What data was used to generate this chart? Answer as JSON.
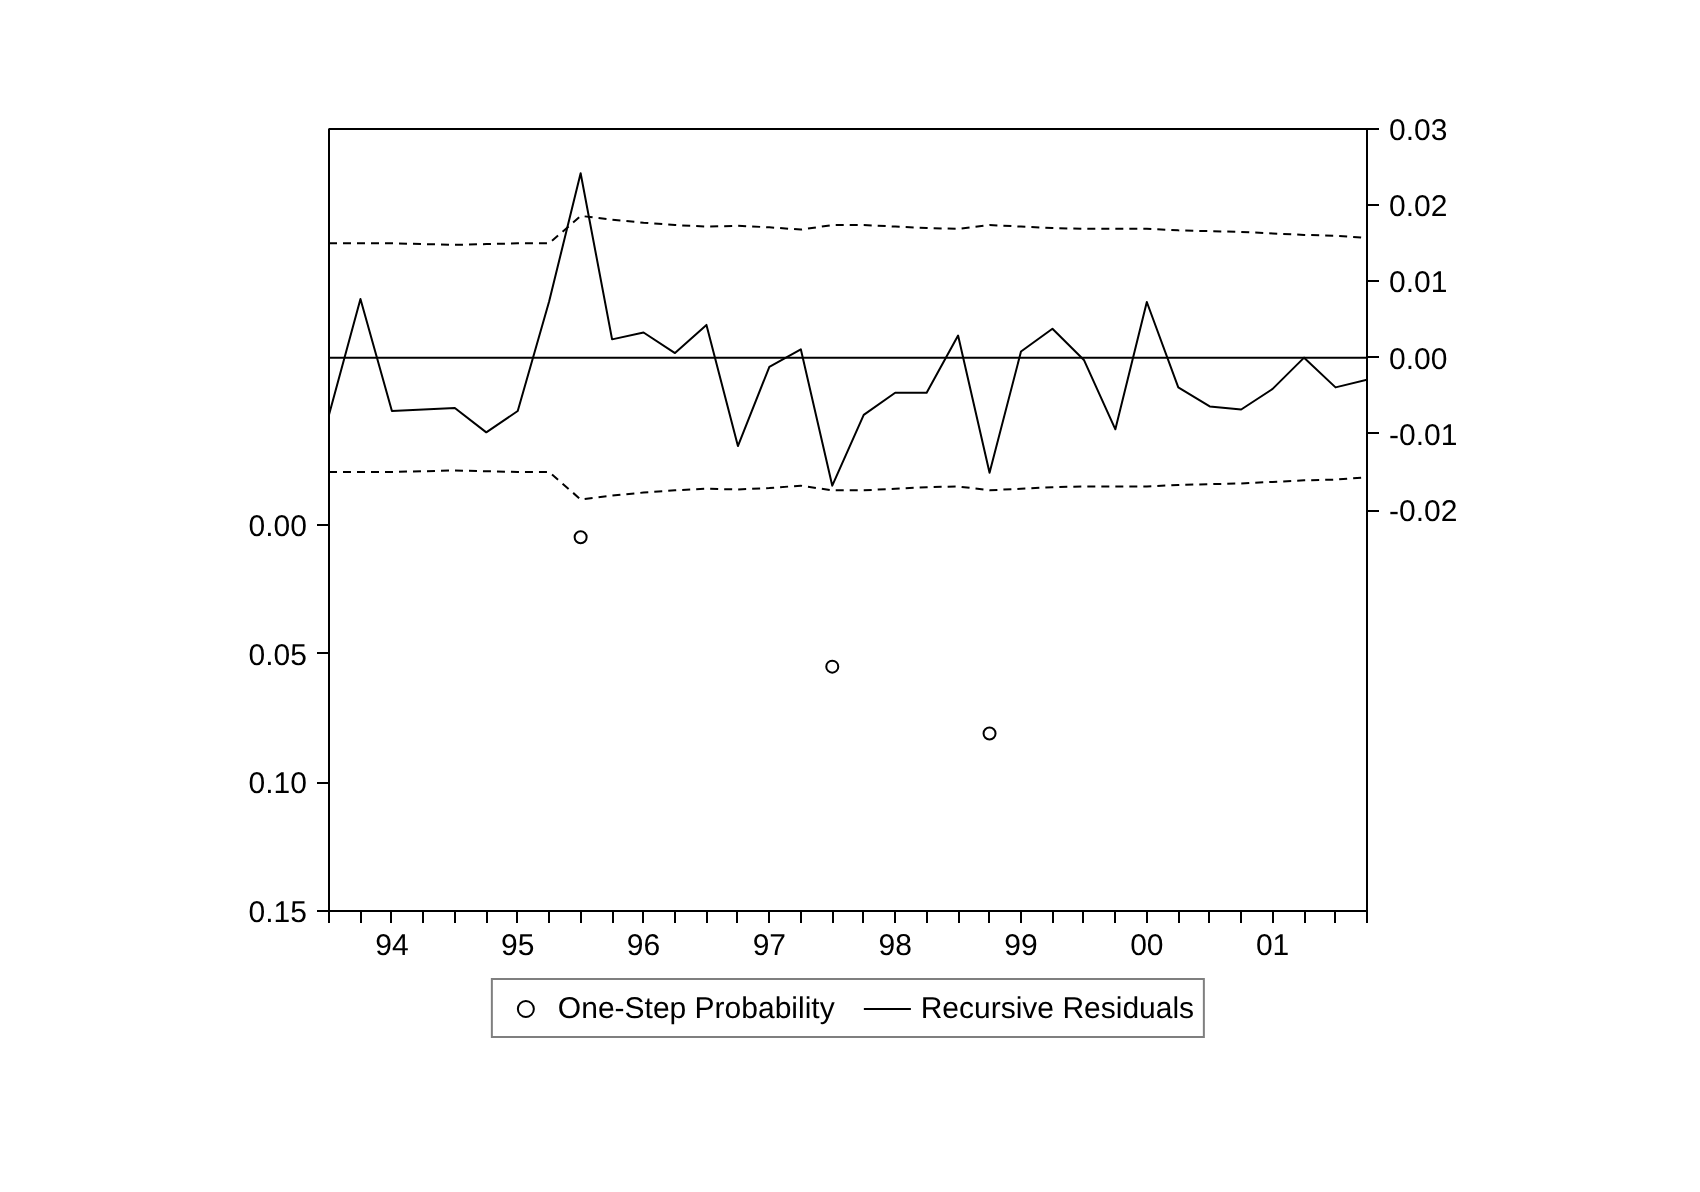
{
  "chart_data": {
    "type": "line",
    "x": [
      1993.5,
      1993.75,
      1994,
      1994.25,
      1994.5,
      1994.75,
      1995,
      1995.25,
      1995.5,
      1995.75,
      1996,
      1996.25,
      1996.5,
      1996.75,
      1997,
      1997.25,
      1997.5,
      1997.75,
      1998,
      1998.25,
      1998.5,
      1998.75,
      1999,
      1999.25,
      1999.5,
      1999.75,
      2000,
      2000.25,
      2000.5,
      2000.75,
      2001,
      2001.25,
      2001.5,
      2001.75
    ],
    "xlim": [
      1993.5,
      2001.75
    ],
    "xticks": [
      {
        "value": 1993.5,
        "label": null
      },
      {
        "value": 1993.75,
        "label": null
      },
      {
        "value": 1994,
        "label": "94"
      },
      {
        "value": 1994.25,
        "label": null
      },
      {
        "value": 1994.5,
        "label": null
      },
      {
        "value": 1994.75,
        "label": null
      },
      {
        "value": 1995,
        "label": "95"
      },
      {
        "value": 1995.25,
        "label": null
      },
      {
        "value": 1995.5,
        "label": null
      },
      {
        "value": 1995.75,
        "label": null
      },
      {
        "value": 1996,
        "label": "96"
      },
      {
        "value": 1996.25,
        "label": null
      },
      {
        "value": 1996.5,
        "label": null
      },
      {
        "value": 1996.75,
        "label": null
      },
      {
        "value": 1997,
        "label": "97"
      },
      {
        "value": 1997.25,
        "label": null
      },
      {
        "value": 1997.5,
        "label": null
      },
      {
        "value": 1997.75,
        "label": null
      },
      {
        "value": 1998,
        "label": "98"
      },
      {
        "value": 1998.25,
        "label": null
      },
      {
        "value": 1998.5,
        "label": null
      },
      {
        "value": 1998.75,
        "label": null
      },
      {
        "value": 1999,
        "label": "99"
      },
      {
        "value": 1999.25,
        "label": null
      },
      {
        "value": 1999.5,
        "label": null
      },
      {
        "value": 1999.75,
        "label": null
      },
      {
        "value": 2000,
        "label": "00"
      },
      {
        "value": 2000.25,
        "label": null
      },
      {
        "value": 2000.5,
        "label": null
      },
      {
        "value": 2000.75,
        "label": null
      },
      {
        "value": 2001,
        "label": "01"
      },
      {
        "value": 2001.25,
        "label": null
      },
      {
        "value": 2001.5,
        "label": null
      },
      {
        "value": 2001.75,
        "label": null
      }
    ],
    "ylim": [
      0.15,
      -0.154
    ],
    "yticks": [
      {
        "value": 0,
        "label": "0.00"
      },
      {
        "value": 0.05,
        "label": "0.05"
      },
      {
        "value": 0.1,
        "label": "0.10"
      },
      {
        "value": 0.15,
        "label": "0.15"
      }
    ],
    "y2lim": [
      -0.0726,
      0.03
    ],
    "y2ticks": [
      {
        "value": -0.02,
        "label": "-0.02"
      },
      {
        "value": -0.01,
        "label": "-0.01"
      },
      {
        "value": 0,
        "label": "0.00"
      },
      {
        "value": 0.01,
        "label": "0.01"
      },
      {
        "value": 0.02,
        "label": "0.02"
      },
      {
        "value": 0.03,
        "label": "0.03"
      }
    ],
    "grid": false,
    "legend": "bottom",
    "ref_lines": [
      {
        "axis": "y2",
        "value": 0,
        "color": "#000000",
        "line_style": "solid"
      }
    ],
    "series": [
      {
        "name": "One-Step Probability",
        "type": "scatter",
        "marker": "circle",
        "color": "#000000",
        "x": [
          1995.5,
          1997.5,
          1998.75
        ],
        "values": [
          0.0047,
          0.055,
          0.081
        ]
      },
      {
        "name": "Recursive Residuals",
        "type": "line",
        "axis": "y2",
        "color": "#000000",
        "line_style": "solid",
        "values": [
          -0.0075,
          0.0077,
          -0.007,
          -0.0068,
          -0.0066,
          -0.0098,
          -0.007,
          0.0074,
          0.0242,
          0.0024,
          0.0033,
          0.0006,
          0.0043,
          -0.0116,
          -0.0012,
          0.0011,
          -0.0168,
          -0.0075,
          -0.0046,
          -0.0046,
          0.0029,
          -0.0151,
          0.0008,
          0.0038,
          -0.0003,
          -0.0094,
          0.0073,
          -0.0039,
          -0.0064,
          -0.0068,
          -0.0041,
          0.0,
          -0.0039,
          -0.0029
        ]
      },
      {
        "axis": "y2",
        "color": "#000000",
        "line_style": "dashed",
        "values": [
          0.015,
          0.015,
          0.015,
          0.0149,
          0.0148,
          0.0149,
          0.015,
          0.015,
          0.0186,
          0.0181,
          0.0177,
          0.0174,
          0.0172,
          0.0173,
          0.0171,
          0.0168,
          0.0174,
          0.0174,
          0.0172,
          0.017,
          0.0169,
          0.0174,
          0.0172,
          0.017,
          0.0169,
          0.0169,
          0.0169,
          0.0167,
          0.0166,
          0.0165,
          0.0163,
          0.0161,
          0.016,
          0.0157
        ]
      },
      {
        "axis": "y2",
        "color": "#000000",
        "line_style": "dashed",
        "values": [
          -0.015,
          -0.015,
          -0.015,
          -0.0149,
          -0.0148,
          -0.0149,
          -0.015,
          -0.015,
          -0.0186,
          -0.0181,
          -0.0177,
          -0.0174,
          -0.0172,
          -0.0173,
          -0.0171,
          -0.0168,
          -0.0174,
          -0.0174,
          -0.0172,
          -0.017,
          -0.0169,
          -0.0174,
          -0.0172,
          -0.017,
          -0.0169,
          -0.0169,
          -0.0169,
          -0.0167,
          -0.0166,
          -0.0165,
          -0.0163,
          -0.0161,
          -0.016,
          -0.0157
        ]
      }
    ]
  }
}
